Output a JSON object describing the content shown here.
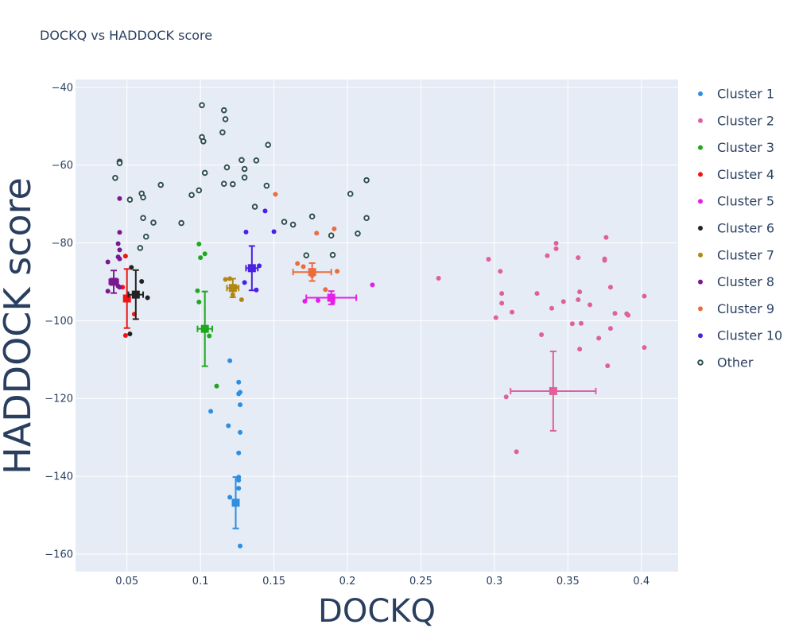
{
  "chart_data": {
    "type": "scatter",
    "title": "DOCKQ vs HADDOCK score",
    "xlabel": "DOCKQ",
    "ylabel": "HADDOCK score",
    "xlim": [
      0.015,
      0.425
    ],
    "ylim": [
      -164.5,
      -38
    ],
    "xticks": [
      0.05,
      0.1,
      0.15,
      0.2,
      0.25,
      0.3,
      0.35,
      0.4
    ],
    "xtick_labels": [
      "0.05",
      "0.1",
      "0.15",
      "0.2",
      "0.25",
      "0.3",
      "0.35",
      "0.4"
    ],
    "yticks": [
      -160,
      -140,
      -120,
      -100,
      -80,
      -60,
      -40
    ],
    "ytick_labels": [
      "−160",
      "−140",
      "−120",
      "−100",
      "−80",
      "−60",
      "−40"
    ],
    "grid": true,
    "legend_position": "right",
    "series": [
      {
        "name": "Cluster 1",
        "color": "#2e8ee0",
        "points": [
          [
            0.12,
            -110.3
          ],
          [
            0.126,
            -115.8
          ],
          [
            0.126,
            -118.8
          ],
          [
            0.127,
            -118.4
          ],
          [
            0.127,
            -121.6
          ],
          [
            0.107,
            -123.3
          ],
          [
            0.119,
            -127
          ],
          [
            0.127,
            -128.7
          ],
          [
            0.126,
            -134
          ],
          [
            0.126,
            -140.2
          ],
          [
            0.126,
            -141
          ],
          [
            0.126,
            -143.1
          ],
          [
            0.12,
            -145.4
          ],
          [
            0.127,
            -157.9
          ]
        ],
        "mean": [
          0.124,
          -146.8
        ],
        "x_err": 0.002,
        "y_err": 6.6
      },
      {
        "name": "Cluster 2",
        "color": "#e0609c",
        "points": [
          [
            0.262,
            -89.1
          ],
          [
            0.296,
            -84.2
          ],
          [
            0.304,
            -87.3
          ],
          [
            0.305,
            -93
          ],
          [
            0.305,
            -95.5
          ],
          [
            0.301,
            -99.2
          ],
          [
            0.312,
            -97.8
          ],
          [
            0.308,
            -119.6
          ],
          [
            0.315,
            -133.7
          ],
          [
            0.329,
            -93
          ],
          [
            0.332,
            -103.6
          ],
          [
            0.336,
            -83.3
          ],
          [
            0.342,
            -81.5
          ],
          [
            0.342,
            -80.1
          ],
          [
            0.339,
            -96.8
          ],
          [
            0.347,
            -95.1
          ],
          [
            0.357,
            -83.8
          ],
          [
            0.358,
            -92.6
          ],
          [
            0.357,
            -94.6
          ],
          [
            0.359,
            -100.7
          ],
          [
            0.353,
            -100.8
          ],
          [
            0.358,
            -107.3
          ],
          [
            0.365,
            -95.9
          ],
          [
            0.371,
            -104.5
          ],
          [
            0.375,
            -84.1
          ],
          [
            0.375,
            -84.5
          ],
          [
            0.376,
            -78.6
          ],
          [
            0.379,
            -91.4
          ],
          [
            0.382,
            -98.1
          ],
          [
            0.379,
            -102
          ],
          [
            0.377,
            -111.6
          ],
          [
            0.39,
            -98.2
          ],
          [
            0.391,
            -98.6
          ],
          [
            0.402,
            -93.7
          ],
          [
            0.402,
            -106.9
          ]
        ],
        "mean": [
          0.34,
          -118.1
        ],
        "x_err": 0.029,
        "y_err": 10.2
      },
      {
        "name": "Cluster 3",
        "color": "#1fa81f",
        "points": [
          [
            0.099,
            -80.3
          ],
          [
            0.103,
            -82.8
          ],
          [
            0.1,
            -83.8
          ],
          [
            0.098,
            -92.3
          ],
          [
            0.099,
            -95.2
          ],
          [
            0.106,
            -103.9
          ],
          [
            0.111,
            -116.8
          ]
        ],
        "mean": [
          0.103,
          -102.1
        ],
        "x_err": 0.005,
        "y_err": 9.6
      },
      {
        "name": "Cluster 4",
        "color": "#f01515",
        "points": [
          [
            0.049,
            -83.4
          ],
          [
            0.047,
            -91.4
          ],
          [
            0.05,
            -94.1
          ],
          [
            0.051,
            -94.4
          ],
          [
            0.055,
            -98.3
          ],
          [
            0.049,
            -103.8
          ]
        ],
        "mean": [
          0.05,
          -94.3
        ],
        "x_err": 0.002,
        "y_err": 7.6
      },
      {
        "name": "Cluster 5",
        "color": "#e51ee8",
        "points": [
          [
            0.171,
            -95
          ],
          [
            0.18,
            -94.8
          ],
          [
            0.19,
            -94.4
          ],
          [
            0.19,
            -95.3
          ],
          [
            0.217,
            -90.8
          ]
        ],
        "mean": [
          0.189,
          -94.1
        ],
        "x_err": 0.017,
        "y_err": 1.7
      },
      {
        "name": "Cluster 6",
        "color": "#222222",
        "points": [
          [
            0.053,
            -86.3
          ],
          [
            0.06,
            -89.9
          ],
          [
            0.055,
            -93.2
          ],
          [
            0.064,
            -94.1
          ],
          [
            0.052,
            -103.4
          ]
        ],
        "mean": [
          0.056,
          -93.3
        ],
        "x_err": 0.005,
        "y_err": 6.3
      },
      {
        "name": "Cluster 7",
        "color": "#b08810",
        "points": [
          [
            0.12,
            -89.2
          ],
          [
            0.117,
            -89.4
          ],
          [
            0.124,
            -91.4
          ],
          [
            0.122,
            -93.3
          ],
          [
            0.128,
            -94.6
          ]
        ],
        "mean": [
          0.122,
          -91.6
        ],
        "x_err": 0.004,
        "y_err": 2.4
      },
      {
        "name": "Cluster 8",
        "color": "#7a1890",
        "points": [
          [
            0.045,
            -68.6
          ],
          [
            0.045,
            -77.3
          ],
          [
            0.044,
            -80.2
          ],
          [
            0.045,
            -81.8
          ],
          [
            0.044,
            -83.6
          ],
          [
            0.045,
            -84.1
          ],
          [
            0.037,
            -84.9
          ],
          [
            0.043,
            -90
          ],
          [
            0.044,
            -91.1
          ],
          [
            0.045,
            -91.4
          ],
          [
            0.037,
            -92.4
          ]
        ],
        "mean": [
          0.041,
          -90
        ],
        "x_err": 0.003,
        "y_err": 2.9
      },
      {
        "name": "Cluster 9",
        "color": "#ec6c3c",
        "points": [
          [
            0.151,
            -67.5
          ],
          [
            0.191,
            -76.4
          ],
          [
            0.179,
            -77.5
          ],
          [
            0.166,
            -85.3
          ],
          [
            0.17,
            -86.1
          ],
          [
            0.176,
            -87.5
          ],
          [
            0.176,
            -88.4
          ],
          [
            0.193,
            -87.3
          ],
          [
            0.185,
            -92
          ]
        ],
        "mean": [
          0.176,
          -87.5
        ],
        "x_err": 0.013,
        "y_err": 2.3
      },
      {
        "name": "Cluster 10",
        "color": "#4a1fe6",
        "points": [
          [
            0.144,
            -71.8
          ],
          [
            0.131,
            -77.2
          ],
          [
            0.15,
            -77.1
          ],
          [
            0.14,
            -85.9
          ],
          [
            0.13,
            -90.2
          ],
          [
            0.138,
            -92.1
          ]
        ],
        "mean": [
          0.135,
          -86.5
        ],
        "x_err": 0.004,
        "y_err": 5.7
      },
      {
        "name": "Other",
        "color": "#2f4f4f",
        "hollow": true,
        "points": [
          [
            0.101,
            -44.6
          ],
          [
            0.116,
            -45.9
          ],
          [
            0.117,
            -48.2
          ],
          [
            0.101,
            -52.8
          ],
          [
            0.102,
            -53.9
          ],
          [
            0.115,
            -51.6
          ],
          [
            0.146,
            -54.8
          ],
          [
            0.045,
            -59.1
          ],
          [
            0.045,
            -59.5
          ],
          [
            0.042,
            -63.3
          ],
          [
            0.103,
            -62
          ],
          [
            0.118,
            -60.6
          ],
          [
            0.128,
            -58.7
          ],
          [
            0.138,
            -58.8
          ],
          [
            0.13,
            -61
          ],
          [
            0.13,
            -63.2
          ],
          [
            0.116,
            -64.8
          ],
          [
            0.122,
            -64.9
          ],
          [
            0.145,
            -65.3
          ],
          [
            0.073,
            -65.1
          ],
          [
            0.099,
            -66.5
          ],
          [
            0.094,
            -67.7
          ],
          [
            0.06,
            -67.3
          ],
          [
            0.061,
            -68.3
          ],
          [
            0.052,
            -68.9
          ],
          [
            0.137,
            -70.7
          ],
          [
            0.061,
            -73.6
          ],
          [
            0.068,
            -74.8
          ],
          [
            0.087,
            -74.9
          ],
          [
            0.157,
            -74.6
          ],
          [
            0.163,
            -75.3
          ],
          [
            0.176,
            -73.2
          ],
          [
            0.202,
            -67.4
          ],
          [
            0.213,
            -63.9
          ],
          [
            0.213,
            -73.6
          ],
          [
            0.207,
            -77.6
          ],
          [
            0.063,
            -78.4
          ],
          [
            0.059,
            -81.3
          ],
          [
            0.172,
            -83.2
          ],
          [
            0.189,
            -78.1
          ],
          [
            0.19,
            -83.1
          ]
        ]
      }
    ]
  }
}
